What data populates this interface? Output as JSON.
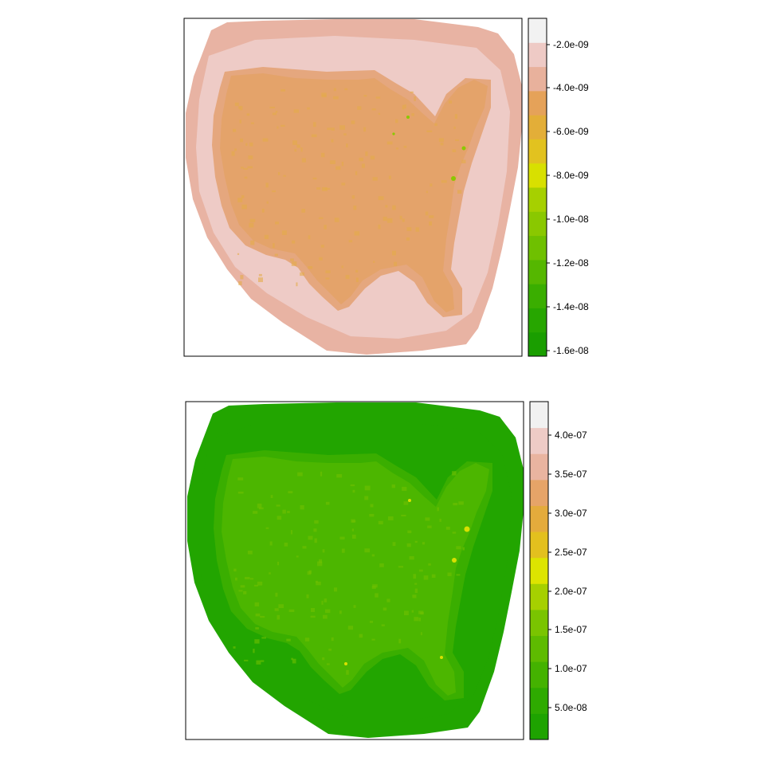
{
  "panels": [
    {
      "id": "top",
      "legend": {
        "colors_bottom_to_top": [
          "#1a9e00",
          "#27a600",
          "#3aae00",
          "#55b700",
          "#6fc000",
          "#8ac800",
          "#a6d000",
          "#d8e000",
          "#e2c21f",
          "#e3ae38",
          "#e5a259",
          "#e8b19c",
          "#eecac5",
          "#f2f2f2"
        ],
        "ticks": [
          "-2.0e-09",
          "-4.0e-09",
          "-6.0e-09",
          "-8.0e-09",
          "-1.0e-08",
          "-1.2e-08",
          "-1.4e-08",
          "-1.6e-08"
        ]
      },
      "map": {
        "outer_color": "#e8b3a3",
        "ring_color": "#eecbc6",
        "land_halo_color": "#e5a77e",
        "land_color": "#e4a36a",
        "speckle_color": "#e4ac4a",
        "hotspot_color": "#8ac800"
      }
    },
    {
      "id": "bottom",
      "legend": {
        "colors_bottom_to_top": [
          "#1ea300",
          "#2eaa00",
          "#44b200",
          "#5ebb00",
          "#7ac400",
          "#a6d000",
          "#dde400",
          "#e3c01e",
          "#e4ab3c",
          "#e6a468",
          "#e9b4a0",
          "#eecbc6",
          "#f1f1f1"
        ],
        "ticks": [
          "4.0e-07",
          "3.5e-07",
          "3.0e-07",
          "2.5e-07",
          "2.0e-07",
          "1.5e-07",
          "1.0e-07",
          "5.0e-08"
        ]
      },
      "map": {
        "outer_color": "#22a500",
        "ring_color": "#22a500",
        "land_halo_color": "#3aae00",
        "land_color": "#4cb600",
        "speckle_color": "#6fc000",
        "hotspot_color": "#d8e000"
      }
    }
  ]
}
